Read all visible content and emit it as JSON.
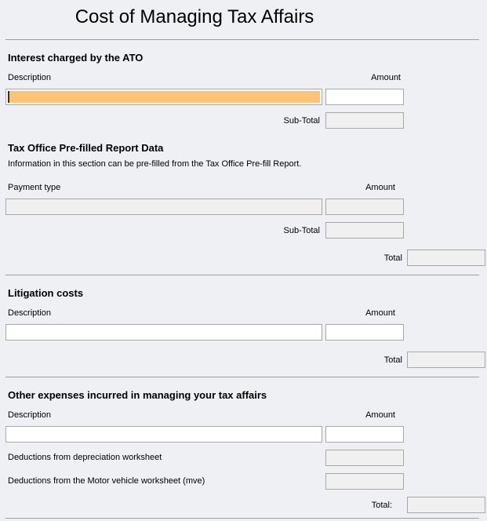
{
  "title": "Cost of Managing Tax Affairs",
  "interest": {
    "heading": "Interest charged by the ATO",
    "description_label": "Description",
    "amount_label": "Amount",
    "subtotal_label": "Sub-Total",
    "description_value": "",
    "amount_value": ""
  },
  "prefill": {
    "heading": "Tax Office Pre-filled Report Data",
    "info": "Information in this section can be pre-filled from the Tax Office Pre-fill Report.",
    "payment_type_label": "Payment type",
    "amount_label": "Amount",
    "subtotal_label": "Sub-Total",
    "total_label": "Total"
  },
  "litigation": {
    "heading": "Litigation costs",
    "description_label": "Description",
    "amount_label": "Amount",
    "total_label": "Total"
  },
  "other": {
    "heading": "Other expenses incurred in managing your tax affairs",
    "description_label": "Description",
    "amount_label": "Amount",
    "depreciation_label": "Deductions from depreciation worksheet",
    "motor_label": "Deductions from the Motor vehicle worksheet (mve)",
    "total_label": "Total:"
  },
  "colors": {
    "focused_field": "#ffc375",
    "background": "#eff0f4"
  }
}
